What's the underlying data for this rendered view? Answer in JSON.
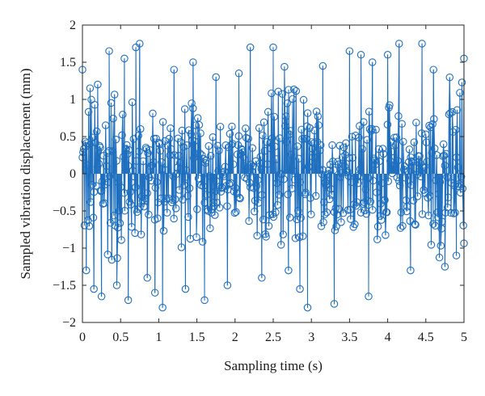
{
  "chart_data": {
    "type": "stem",
    "title": "",
    "xlabel": "Sampling time (s)",
    "ylabel": "Sampled vibration displacement (mm)",
    "xlim": [
      0,
      5
    ],
    "ylim": [
      -2,
      2
    ],
    "xticks": [
      0,
      0.5,
      1,
      1.5,
      2,
      2.5,
      3,
      3.5,
      4,
      4.5,
      5
    ],
    "yticks": [
      -2,
      -1.5,
      -1,
      -0.5,
      0,
      0.5,
      1,
      1.5,
      2
    ],
    "xtick_labels": [
      "0",
      "0.5",
      "1",
      "1.5",
      "2",
      "2.5",
      "3",
      "3.5",
      "4",
      "4.5",
      "5"
    ],
    "ytick_labels": [
      "−2",
      "−1.5",
      "−1",
      "−0.5",
      "0",
      "0.5",
      "1",
      "1.5",
      "2"
    ],
    "grid": false,
    "box": true,
    "series_color": "#1f6fbf",
    "axis_color": "#262626",
    "representative_samples": [
      {
        "x": 0.0,
        "y": 1.4
      },
      {
        "x": 0.05,
        "y": -1.3
      },
      {
        "x": 0.1,
        "y": 1.15
      },
      {
        "x": 0.15,
        "y": -1.55
      },
      {
        "x": 0.2,
        "y": 1.2
      },
      {
        "x": 0.25,
        "y": -1.65
      },
      {
        "x": 0.35,
        "y": 1.65
      },
      {
        "x": 0.45,
        "y": -1.5
      },
      {
        "x": 0.55,
        "y": 1.55
      },
      {
        "x": 0.6,
        "y": -1.7
      },
      {
        "x": 0.7,
        "y": 1.7
      },
      {
        "x": 0.75,
        "y": 1.75
      },
      {
        "x": 0.85,
        "y": -1.4
      },
      {
        "x": 0.95,
        "y": -1.6
      },
      {
        "x": 1.05,
        "y": -1.8
      },
      {
        "x": 1.2,
        "y": 1.4
      },
      {
        "x": 1.35,
        "y": -1.55
      },
      {
        "x": 1.45,
        "y": 1.5
      },
      {
        "x": 1.6,
        "y": -1.7
      },
      {
        "x": 1.75,
        "y": 1.3
      },
      {
        "x": 1.9,
        "y": -1.5
      },
      {
        "x": 2.05,
        "y": 1.35
      },
      {
        "x": 2.2,
        "y": 1.7
      },
      {
        "x": 2.35,
        "y": -1.4
      },
      {
        "x": 2.5,
        "y": 1.7
      },
      {
        "x": 2.7,
        "y": -1.3
      },
      {
        "x": 2.85,
        "y": -1.55
      },
      {
        "x": 2.95,
        "y": -1.8
      },
      {
        "x": 3.15,
        "y": 1.45
      },
      {
        "x": 3.3,
        "y": -1.75
      },
      {
        "x": 3.5,
        "y": 1.65
      },
      {
        "x": 3.65,
        "y": 1.6
      },
      {
        "x": 3.75,
        "y": -1.65
      },
      {
        "x": 3.8,
        "y": 1.5
      },
      {
        "x": 4.0,
        "y": 1.6
      },
      {
        "x": 4.15,
        "y": 1.75
      },
      {
        "x": 4.3,
        "y": -1.3
      },
      {
        "x": 4.45,
        "y": 1.75
      },
      {
        "x": 4.6,
        "y": 1.4
      },
      {
        "x": 4.75,
        "y": -1.25
      },
      {
        "x": 4.9,
        "y": -1.1
      },
      {
        "x": 5.0,
        "y": 1.55
      }
    ]
  }
}
